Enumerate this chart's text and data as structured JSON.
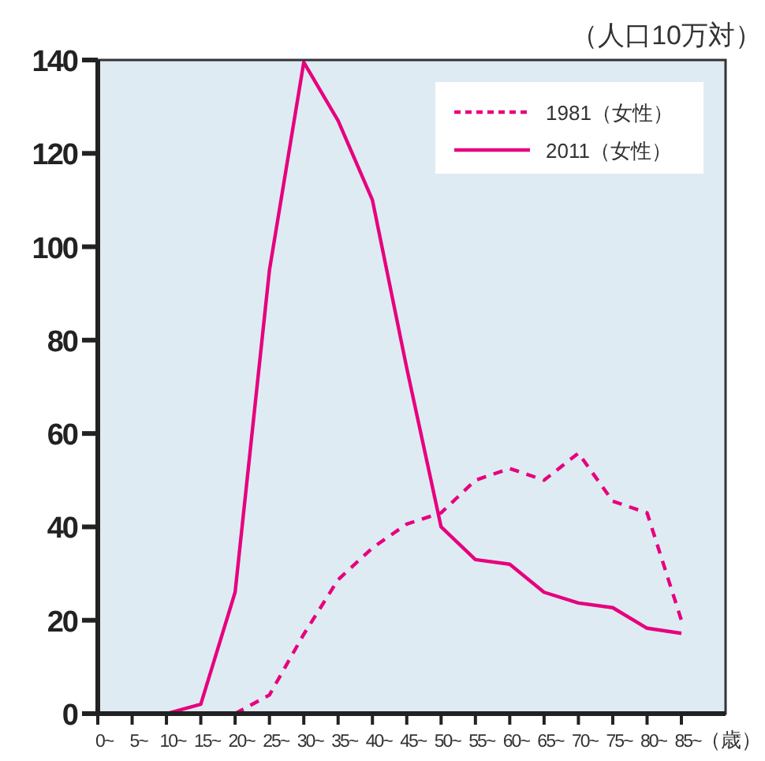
{
  "chart_data": {
    "type": "line",
    "ylabel": "（人口10万対）",
    "xlabel": "（歳）",
    "categories": [
      "0~",
      "5~",
      "10~",
      "15~",
      "20~",
      "25~",
      "30~",
      "35~",
      "40~",
      "45~",
      "50~",
      "55~",
      "60~",
      "65~",
      "70~",
      "75~",
      "80~",
      "85~"
    ],
    "series": [
      {
        "name": "1981（女性）",
        "color": "#e6007e",
        "line_style": "dashed",
        "values": [
          null,
          null,
          null,
          null,
          0,
          4,
          17,
          28.7,
          35.5,
          40.6,
          43,
          50,
          52.5,
          50,
          55.8,
          45.5,
          43,
          20
        ]
      },
      {
        "name": "2011（女性）",
        "color": "#e6007e",
        "line_style": "solid",
        "values": [
          0,
          0,
          0,
          2,
          26,
          95,
          139.5,
          127,
          110,
          74,
          40,
          33,
          32,
          26,
          23.7,
          22.7,
          18.3,
          17.2
        ]
      }
    ],
    "ylim": [
      0,
      140
    ],
    "yticks": [
      0,
      20,
      40,
      60,
      80,
      100,
      120,
      140
    ],
    "legend": "top right",
    "marker": "none",
    "grid": false
  }
}
